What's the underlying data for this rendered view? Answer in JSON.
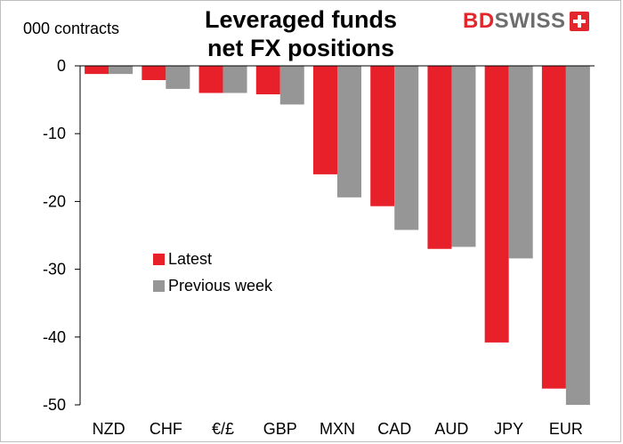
{
  "chart_data": {
    "type": "bar",
    "title": "Leveraged funds\nnet FX positions",
    "ylabel": "000 contracts",
    "xlabel": "",
    "categories": [
      "NZD",
      "CHF",
      "€/£",
      "GBP",
      "MXN",
      "CAD",
      "AUD",
      "JPY",
      "EUR"
    ],
    "series": [
      {
        "name": "Latest",
        "color": "#e8202a",
        "values": [
          -1.2,
          -2.1,
          -4.0,
          -4.2,
          -16.0,
          -20.7,
          -27.0,
          -40.8,
          -47.6
        ]
      },
      {
        "name": "Previous week",
        "color": "#969696",
        "values": [
          -1.2,
          -3.4,
          -4.0,
          -5.7,
          -19.4,
          -24.2,
          -26.7,
          -28.4,
          -50.0
        ]
      }
    ],
    "ylim": [
      -50,
      0
    ],
    "yticks": [
      0,
      -10,
      -20,
      -30,
      -40,
      -50
    ],
    "ytick_labels": [
      "0",
      "-10",
      "-20",
      "-30",
      "-40",
      "-50"
    ],
    "grid": false,
    "legend": "middle-left"
  },
  "title_lines": [
    "Leveraged funds",
    "net FX positions"
  ],
  "logo": {
    "part1": "BD",
    "part2": "SWISS"
  }
}
